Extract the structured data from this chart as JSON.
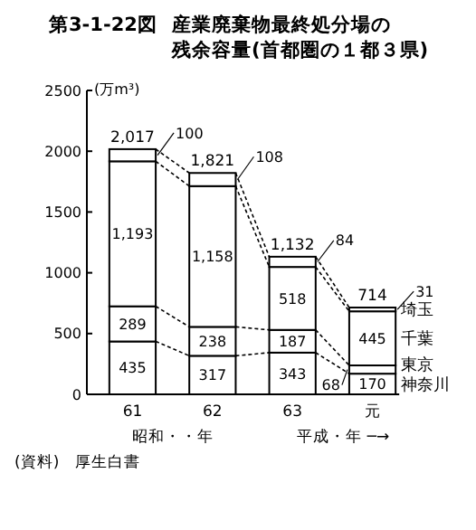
{
  "chart_data": {
    "type": "bar",
    "stacked": true,
    "title": "第3-1-22図",
    "subtitle": "産業廃棄物最終処分場の残余容量(首都圏の１都３県)",
    "ylabel": "(万m³)",
    "categories": [
      "61",
      "62",
      "63",
      "元"
    ],
    "series": [
      {
        "name": "神奈川",
        "color": "#ffffff",
        "values": [
          435,
          317,
          343,
          170
        ],
        "value_labels": [
          "435",
          "317",
          "343",
          "170"
        ]
      },
      {
        "name": "東京",
        "color": "#ffffff",
        "values": [
          289,
          238,
          187,
          68
        ],
        "value_labels": [
          "289",
          "238",
          "187",
          "68"
        ]
      },
      {
        "name": "千葉",
        "color": "#ffffff",
        "values": [
          1193,
          1158,
          518,
          445
        ],
        "value_labels": [
          "1,193",
          "1,158",
          "518",
          "445"
        ]
      },
      {
        "name": "埼玉",
        "color": "#ffffff",
        "values": [
          100,
          108,
          84,
          31
        ],
        "value_labels": [
          "100",
          "108",
          "84",
          "31"
        ]
      }
    ],
    "totals": [
      "2,017",
      "1,821",
      "1,132",
      "714"
    ],
    "ylim": [
      0,
      2500
    ],
    "yticks": [
      0,
      500,
      1000,
      1500,
      2000,
      2500
    ],
    "grid": false,
    "legend": "right",
    "annotations": [
      "昭和・・年",
      "平成・年 ─→",
      "(資料)　厚生白書"
    ]
  }
}
